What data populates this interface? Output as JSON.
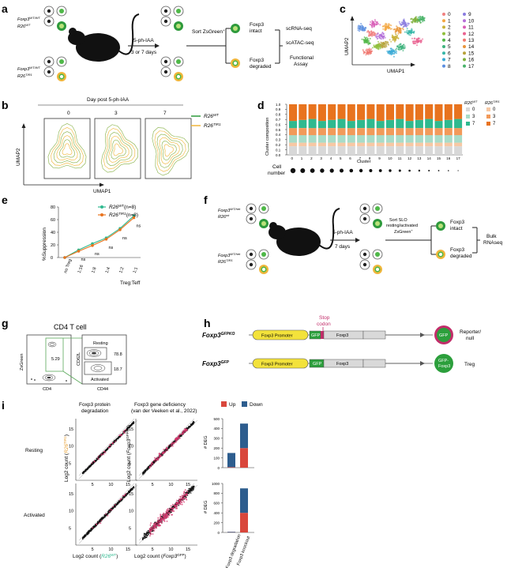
{
  "panels": {
    "a": {
      "letter": "a",
      "genotype_top_1": "Foxp3",
      "genotype_top_sup": "WT/WT",
      "genotype_top_2": "R26",
      "genotype_top_2_sup": "WT",
      "genotype_bot_1": "Foxp3",
      "genotype_bot_sup": "WT/WT",
      "genotype_bot_2": "R26",
      "genotype_bot_2_sup": "TIR1",
      "treatment": "5-ph-IAA",
      "duration": "3 or 7 days",
      "sort": "Sort ZsGreen",
      "sort_sup": "+",
      "intact_1": "Foxp3",
      "intact_2": "intact",
      "degraded_1": "Foxp3",
      "degraded_2": "degraded",
      "assay_1": "scRNA-seq",
      "assay_2": "scATAC-seq",
      "assay_3": "Functional",
      "assay_4": "Assay"
    },
    "b": {
      "letter": "b",
      "title": "Day post 5-ph-IAA",
      "days": [
        "0",
        "3",
        "7"
      ],
      "ylabel": "UMAP2",
      "xlabel": "UMAP1",
      "legend": [
        {
          "label": "R26",
          "sup": "WT",
          "color": "#2e9a3c"
        },
        {
          "label": "R26",
          "sup": "TIR1",
          "color": "#f0b63b"
        }
      ]
    },
    "c": {
      "letter": "c",
      "ylabel": "UMAP2",
      "xlabel": "UMAP1",
      "clusters": [
        "0",
        "1",
        "2",
        "3",
        "4",
        "5",
        "6",
        "7",
        "8",
        "9",
        "10",
        "11",
        "12",
        "13",
        "14",
        "15",
        "16",
        "17"
      ],
      "colors": [
        "#f08080",
        "#f4a641",
        "#c9b23a",
        "#8fbf3a",
        "#52b848",
        "#3fb37e",
        "#36b6a8",
        "#38a9d6",
        "#5b8ee0",
        "#8a7ce0",
        "#b46fd8",
        "#d85fb8",
        "#ea6190",
        "#f07870",
        "#e8953a",
        "#b8a23a",
        "#7fb03a",
        "#4ab36a"
      ]
    },
    "d": {
      "letter": "d",
      "ylabel": "Cluster composition",
      "xlabel": "Cluster",
      "row_label_1": "Cell",
      "row_label_2": "number",
      "yticks": [
        "0.0",
        "0.1",
        "0.2",
        "0.3",
        "0.4",
        "0.5",
        "0.6",
        "0.7",
        "0.8",
        "0.9",
        "1.0"
      ],
      "legend_wt": "R26",
      "legend_wt_sup": "WT",
      "legend_tir": "R26",
      "legend_tir_sup": "TIR1",
      "legend_days": [
        "0",
        "3",
        "7"
      ],
      "colors_wt": [
        "#d8d8d8",
        "#a8dcc8",
        "#2fb98f"
      ],
      "colors_tir": [
        "#f7c8a4",
        "#f29a5a",
        "#e8731e"
      ]
    },
    "e": {
      "letter": "e",
      "ylabel": "%Suppression",
      "xlabel": "Treg:Teff",
      "yticks": [
        "0",
        "20",
        "40",
        "60",
        "80"
      ],
      "legend": [
        {
          "label": "R26",
          "sup": "WT",
          "n": "(n=8)",
          "color": "#2fb98f"
        },
        {
          "label": "R26",
          "sup": "TIR1",
          "n": "(n=8)",
          "color": "#e8731e"
        }
      ],
      "ns": "ns"
    },
    "f": {
      "letter": "f",
      "genotype_top_1": "Foxp3",
      "genotype_top_sup": "WT/het",
      "genotype_top_2": "R26",
      "genotype_top_2_sup": "wt",
      "genotype_bot_1": "Foxp3",
      "genotype_bot_sup": "WT/het",
      "genotype_bot_2": "R26",
      "genotype_bot_2_sup": "TIR1",
      "treatment": "5-ph-IAA",
      "duration": "7 days",
      "sort_1": "Sort SLO",
      "sort_2": "resting/activated",
      "sort_3": "ZsGreen",
      "sort_sup": "+",
      "intact_1": "Foxp3",
      "intact_2": "intact",
      "degraded_1": "Foxp3",
      "degraded_2": "degraded",
      "bulk_1": "Bulk",
      "bulk_2": "RNAseq"
    },
    "g": {
      "letter": "g",
      "title": "CD4 T cell",
      "y1": "ZsGreen",
      "x1": "CD4",
      "gate1": "5.29",
      "y2": "CD62L",
      "x2": "CD44",
      "resting": "Resting",
      "resting_val": "78.8",
      "activated": "Activated",
      "activated_val": "18.7"
    },
    "h": {
      "letter": "h",
      "stop_1": "Stop",
      "stop_2": "codon",
      "row1_name": "Foxp3",
      "row1_sup": "GFPKO",
      "row1_promoter": "Foxp3 Promoter",
      "row1_gfp": "GFP",
      "row1_foxp3": "Foxp3",
      "row1_protein": "GFP",
      "row1_note_1": "Reporter/",
      "row1_note_2": "null",
      "row2_name": "Foxp3",
      "row2_sup": "GFP",
      "row2_promoter": "Foxp3 Promoter",
      "row2_gfp": "GFP",
      "row2_foxp3": "Foxp3",
      "row2_protein_1": "GFP-",
      "row2_protein_2": "Foxp3",
      "row2_note": "Treg"
    },
    "i": {
      "letter": "i",
      "col1_title_1": "Foxp3 protein",
      "col1_title_2": "degradation",
      "col2_title_1": "Foxp3 gene deficiency",
      "col2_title_2": "(van der Veeken et al., 2022)",
      "row_resting": "Resting",
      "row_activated": "Activated",
      "ylabel_1": "Log2 count (",
      "ylabel_1b": "R26",
      "ylabel_1sup": "TIR1",
      "ylabel_2": "Log2 count (",
      "ylabel_2b": "Foxp3",
      "ylabel_2sup": "GFPKO",
      "xlabel_1": "Log2 count (",
      "xlabel_1b": "R26",
      "xlabel_1sup": "WT",
      "xlabel_2": "Log2 count (",
      "xlabel_2b": "Foxp3",
      "xlabel_2sup": "GFP",
      "ticks": [
        "5",
        "10",
        "15"
      ],
      "legend_up": "Up",
      "legend_down": "Down",
      "deg_label": "# DEG",
      "cat_1": "Foxp3 degradation",
      "cat_2": "Foxp3 knockout",
      "color_up": "#d9473c",
      "color_down": "#2d5d8e",
      "resting_bars": {
        "ylim": [
          0,
          500
        ],
        "yticks": [
          "0",
          "100",
          "200",
          "300",
          "400",
          "500"
        ],
        "up": [
          5,
          200
        ],
        "down": [
          145,
          250
        ]
      },
      "activated_bars": {
        "ylim": [
          0,
          1000
        ],
        "yticks": [
          "0",
          "200",
          "400",
          "600",
          "800",
          "1000"
        ],
        "up": [
          5,
          400
        ],
        "down": [
          10,
          500
        ]
      }
    }
  }
}
